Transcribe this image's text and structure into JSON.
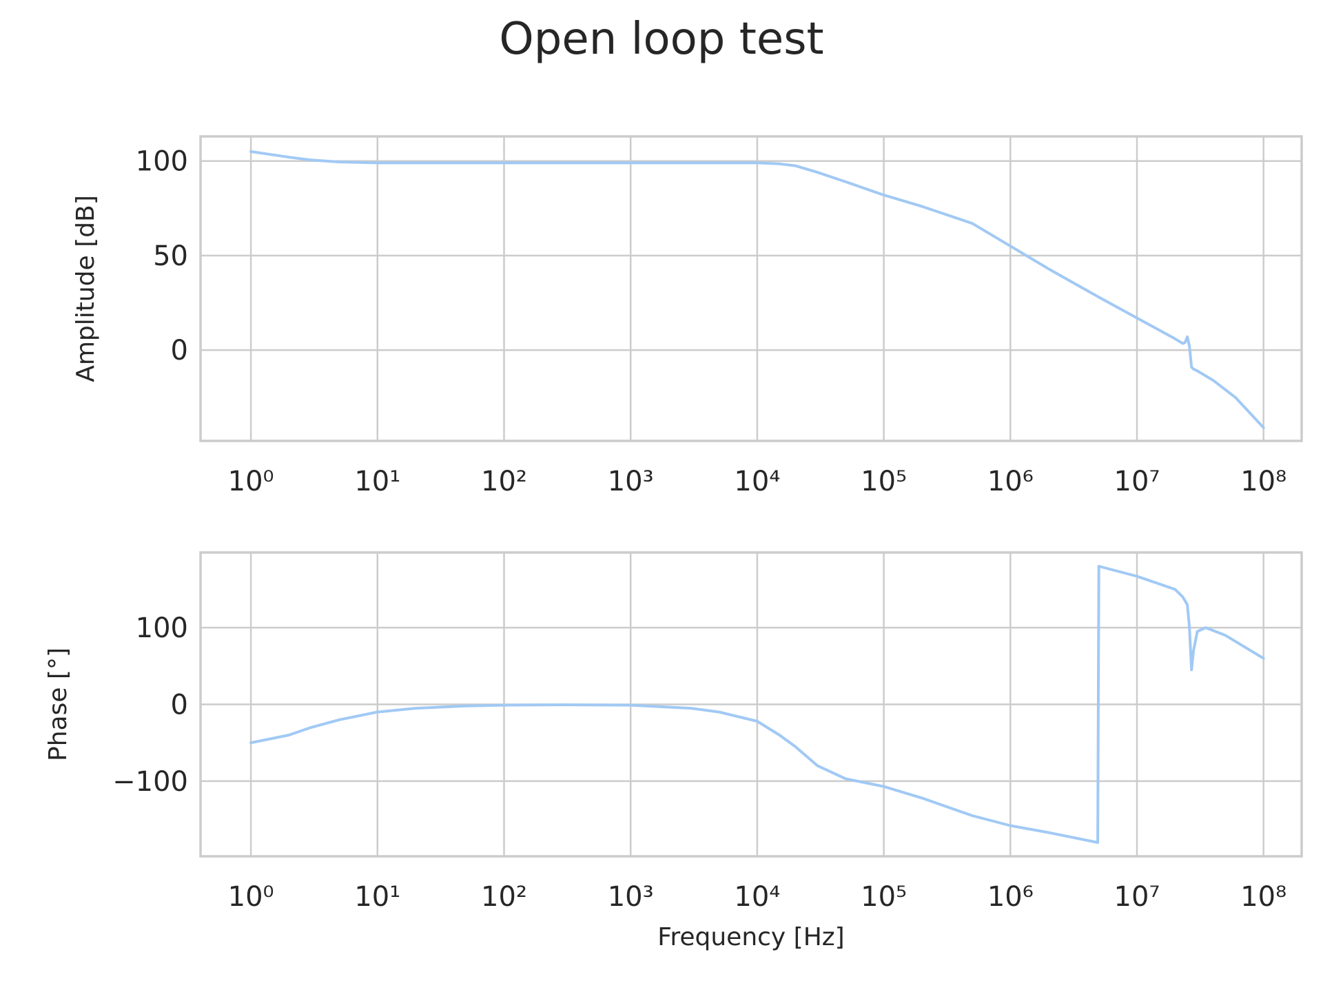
{
  "title": "Open loop test",
  "colors": {
    "series": "#a1c9f4",
    "grid": "#cccccc",
    "text": "#262626"
  },
  "chart_data": [
    {
      "type": "line",
      "panel": "top",
      "xscale": "log",
      "xlim": [
        0.4,
        200000000
      ],
      "x_ticks": [
        1,
        10,
        100,
        1000,
        10000,
        100000,
        1000000,
        10000000,
        100000000
      ],
      "x_tick_labels": [
        "10⁰",
        "10¹",
        "10²",
        "10³",
        "10⁴",
        "10⁵",
        "10⁶",
        "10⁷",
        "10⁸"
      ],
      "xlabel": "",
      "ylabel": "Amplitude [dB]",
      "ylim": [
        -48,
        113
      ],
      "y_ticks": [
        0,
        50,
        100
      ],
      "y_tick_labels": [
        "0",
        "50",
        "100"
      ],
      "grid": true,
      "series": [
        {
          "x": [
            1,
            2,
            3,
            5,
            10,
            100,
            1000,
            10000,
            15000,
            20000,
            30000,
            50000,
            100000,
            200000,
            500000,
            1000000,
            2000000,
            5000000,
            10000000,
            20000000,
            23000000,
            24000000,
            25000000,
            26000000,
            27000000,
            28000000,
            30000000,
            40000000,
            60000000,
            100000000
          ],
          "y": [
            105,
            102,
            100.5,
            99.5,
            99,
            99,
            99,
            99,
            98.5,
            97.5,
            94,
            89,
            82,
            76,
            67,
            55,
            43,
            28,
            17,
            6,
            3.5,
            4,
            7,
            2,
            -9,
            -10,
            -11,
            -16,
            -25,
            -41
          ]
        }
      ]
    },
    {
      "type": "line",
      "panel": "bottom",
      "xscale": "log",
      "xlim": [
        0.4,
        200000000
      ],
      "x_ticks": [
        1,
        10,
        100,
        1000,
        10000,
        100000,
        1000000,
        10000000,
        100000000
      ],
      "x_tick_labels": [
        "10⁰",
        "10¹",
        "10²",
        "10³",
        "10⁴",
        "10⁵",
        "10⁶",
        "10⁷",
        "10⁸"
      ],
      "xlabel": "Frequency [Hz]",
      "ylabel": "Phase [°]",
      "ylim": [
        -198,
        198
      ],
      "y_ticks": [
        -100,
        0,
        100
      ],
      "y_tick_labels": [
        "−100",
        "0",
        "100"
      ],
      "grid": true,
      "series": [
        {
          "x": [
            1,
            2,
            3,
            5,
            10,
            20,
            50,
            100,
            300,
            1000,
            3000,
            5000,
            10000,
            15000,
            20000,
            30000,
            50000,
            100000,
            200000,
            500000,
            1000000,
            2000000,
            4900000,
            4950000,
            5000000,
            10000000,
            20000000,
            23000000,
            25000000,
            26000000,
            27000000,
            28000000,
            30000000,
            35000000,
            50000000,
            100000000
          ],
          "y": [
            -50,
            -40,
            -30,
            -20,
            -10,
            -5,
            -2,
            -1,
            -0.5,
            -1,
            -5,
            -10,
            -22,
            -40,
            -55,
            -80,
            -97,
            -107,
            -122,
            -145,
            -158,
            -167,
            -180,
            0,
            180,
            167,
            150,
            140,
            130,
            100,
            45,
            70,
            95,
            100,
            90,
            60
          ]
        }
      ]
    }
  ]
}
